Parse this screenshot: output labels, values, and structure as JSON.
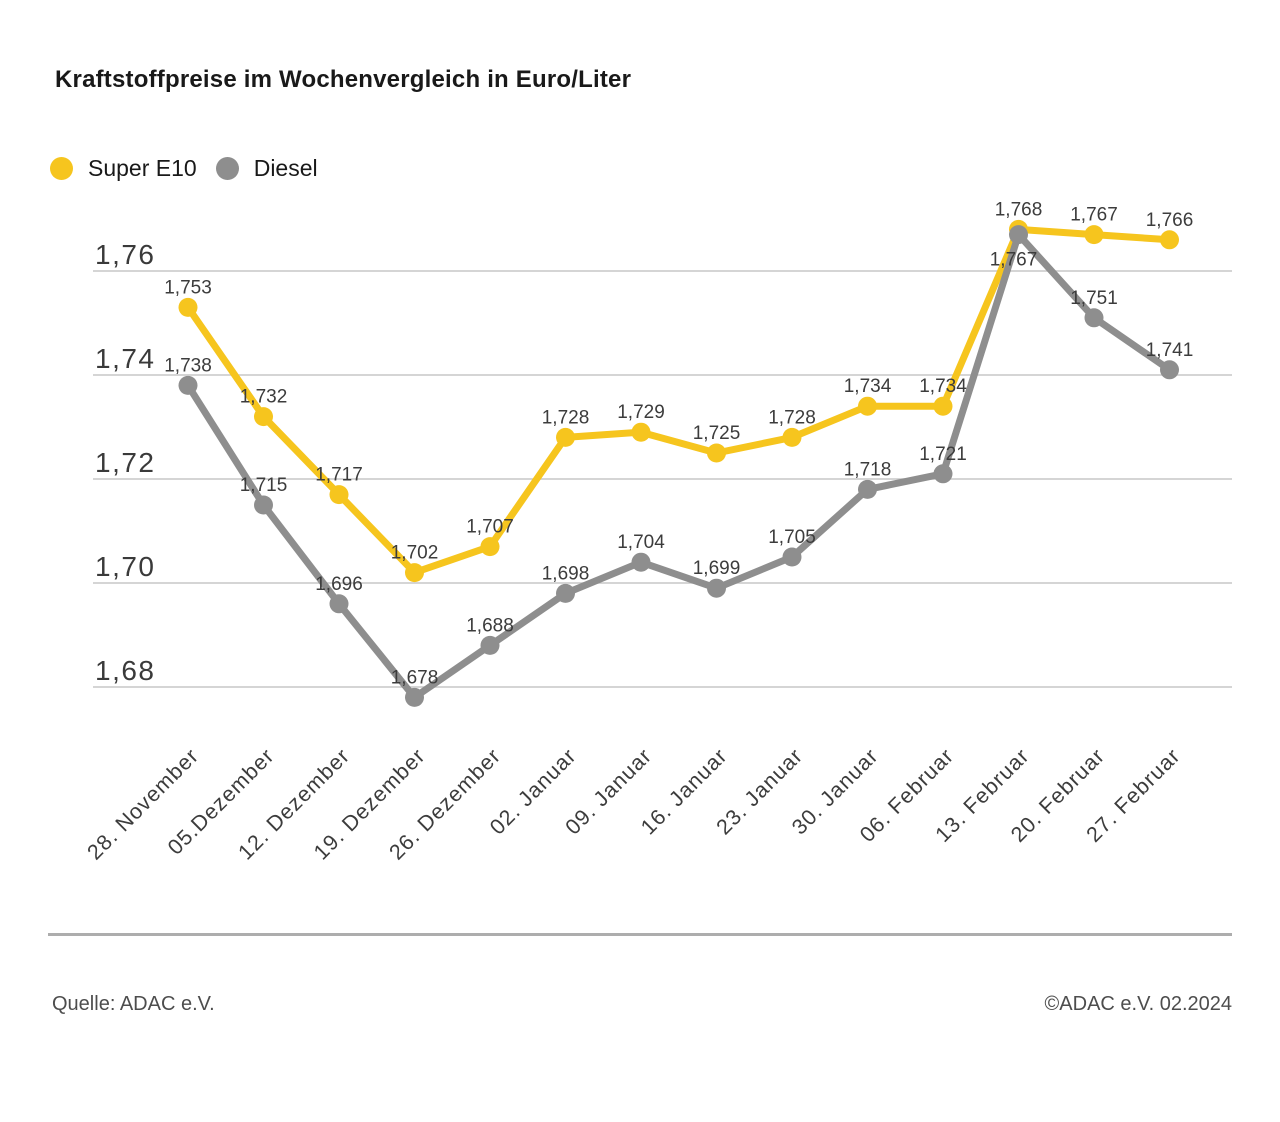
{
  "chart_data": {
    "type": "line",
    "title": "Kraftstoffpreise im Wochenvergleich in Euro/Liter",
    "categories": [
      "28. November",
      "05.Dezember",
      "12. Dezember",
      "19. Dezember",
      "26. Dezember",
      "02. Januar",
      "09. Januar",
      "16. Januar",
      "23. Januar",
      "30. Januar",
      "06. Februar",
      "13. Februar",
      "20. Februar",
      "27. Februar"
    ],
    "series": [
      {
        "name": "Super E10",
        "color": "#F6C51E",
        "values": [
          1.753,
          1.732,
          1.717,
          1.702,
          1.707,
          1.728,
          1.729,
          1.725,
          1.728,
          1.734,
          1.734,
          1.768,
          1.767,
          1.766
        ],
        "labels": [
          "1,753",
          "1,732",
          "1,717",
          "1,702",
          "1,707",
          "1,728",
          "1,729",
          "1,725",
          "1,728",
          "1,734",
          "1,734",
          "1,768",
          "1,767",
          "1,766"
        ]
      },
      {
        "name": "Diesel",
        "color": "#8E8E8E",
        "values": [
          1.738,
          1.715,
          1.696,
          1.678,
          1.688,
          1.698,
          1.704,
          1.699,
          1.705,
          1.718,
          1.721,
          1.767,
          1.751,
          1.741
        ],
        "labels": [
          "1,738",
          "1,715",
          "1,696",
          "1,678",
          "1,688",
          "1,698",
          "1,704",
          "1,699",
          "1,705",
          "1,718",
          "1,721",
          "1,767",
          "1,751",
          "1,741"
        ]
      }
    ],
    "yticks": [
      1.76,
      1.74,
      1.72,
      1.7,
      1.68
    ],
    "ytick_labels": [
      "1,76",
      "1,74",
      "1,72",
      "1,70",
      "1,68"
    ],
    "ylim": [
      1.668,
      1.772
    ],
    "xlabel": "",
    "ylabel": "",
    "unit": "Euro/Liter",
    "grid": true,
    "legend_position": "top-left",
    "decimal_separator": ","
  },
  "footer": {
    "source_left": "Quelle: ADAC e.V.",
    "source_right": "©ADAC e.V. 02.2024"
  }
}
